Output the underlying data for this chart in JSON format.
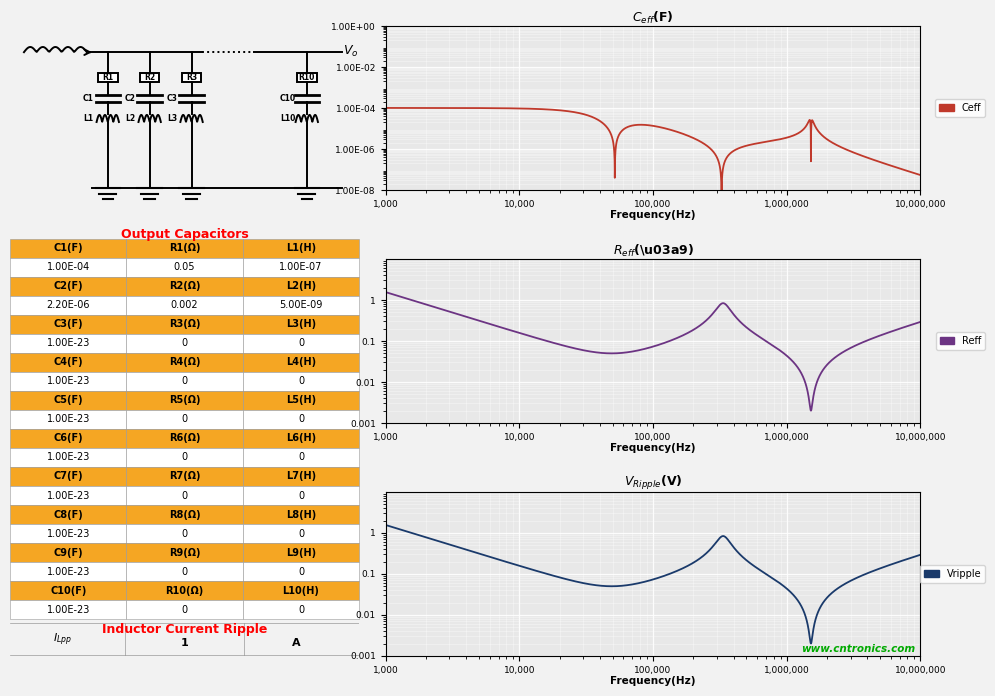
{
  "table_header_color": "#F5A623",
  "table_white_color": "#FFFFFF",
  "table_data": [
    [
      "C1(F)",
      "R1(Ω)",
      "L1(H)",
      "1.00E-04",
      "0.05",
      "1.00E-07"
    ],
    [
      "C2(F)",
      "R2(Ω)",
      "L2(H)",
      "2.20E-06",
      "0.002",
      "5.00E-09"
    ],
    [
      "C3(F)",
      "R3(Ω)",
      "L3(H)",
      "1.00E-23",
      "0",
      "0"
    ],
    [
      "C4(F)",
      "R4(Ω)",
      "L4(H)",
      "1.00E-23",
      "0",
      "0"
    ],
    [
      "C5(F)",
      "R5(Ω)",
      "L5(H)",
      "1.00E-23",
      "0",
      "0"
    ],
    [
      "C6(F)",
      "R6(Ω)",
      "L6(H)",
      "1.00E-23",
      "0",
      "0"
    ],
    [
      "C7(F)",
      "R7(Ω)",
      "L7(H)",
      "1.00E-23",
      "0",
      "0"
    ],
    [
      "C8(F)",
      "R8(Ω)",
      "L8(H)",
      "1.00E-23",
      "0",
      "0"
    ],
    [
      "C9(F)",
      "R9(Ω)",
      "L9(H)",
      "1.00E-23",
      "0",
      "0"
    ],
    [
      "C10(F)",
      "R10(Ω)",
      "L10(H)",
      "1.00E-23",
      "0",
      "0"
    ]
  ],
  "freq_label": "Frequency(Hz)",
  "ceff_color": "#C0392B",
  "reff_color": "#6C3483",
  "vripple_color": "#1A3A6B",
  "plot_bg": "#E8E8E8",
  "watermark": "www.cntronics.com",
  "watermark_color": "#00AA00",
  "xticks": [
    1000,
    10000,
    100000,
    1000000,
    10000000
  ],
  "xtick_labels": [
    "1,000",
    "10,000",
    "100,000",
    "1,000,000",
    "10,000,000"
  ]
}
